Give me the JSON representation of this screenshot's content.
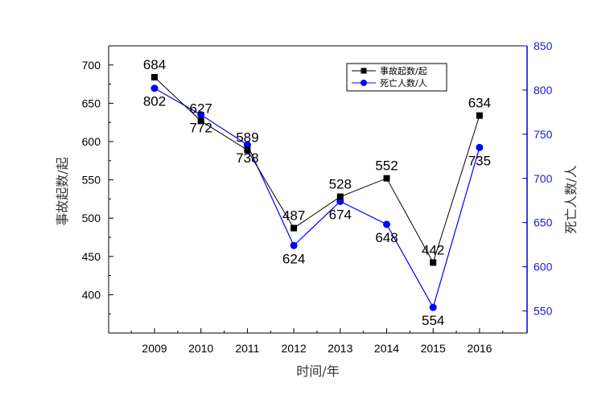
{
  "chart_data": {
    "type": "line",
    "categories": [
      "2009",
      "2010",
      "2011",
      "2012",
      "2013",
      "2014",
      "2015",
      "2016"
    ],
    "series": [
      {
        "name": "事故起数/起",
        "axis": "left",
        "color": "#000000",
        "marker": "square",
        "values": [
          684,
          627,
          589,
          487,
          528,
          552,
          442,
          634
        ]
      },
      {
        "name": "死亡人数/人",
        "axis": "right",
        "color": "#0000ff",
        "marker": "circle",
        "values": [
          802,
          772,
          738,
          624,
          674,
          648,
          554,
          735
        ]
      }
    ],
    "xlabel": "时间/年",
    "ylabel_left": "事故起数/起",
    "ylabel_right": "死亡人数/人",
    "ylim_left": [
      350,
      725
    ],
    "yticks_left": [
      400,
      450,
      500,
      550,
      600,
      650,
      700
    ],
    "ylim_right": [
      525,
      850
    ],
    "yticks_right": [
      550,
      600,
      650,
      700,
      750,
      800,
      850
    ],
    "right_axis_color": "#0000cc",
    "legend_position": "top-right",
    "grid": false
  }
}
